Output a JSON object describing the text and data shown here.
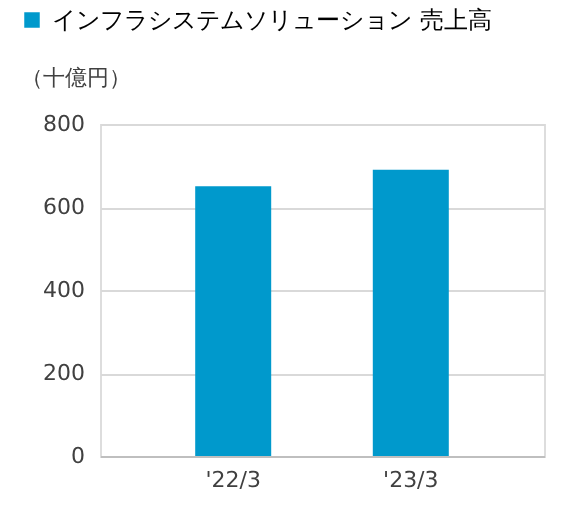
{
  "chart_data": {
    "type": "bar",
    "categories": [
      "'22/3",
      "'23/3"
    ],
    "series": [
      {
        "name": "インフラシステムソリューション 売上高",
        "color": "#0099cc",
        "values": [
          650,
          690
        ]
      }
    ],
    "ylabel": "（十億円）",
    "ylim": [
      0,
      800
    ],
    "yticks": [
      0,
      200,
      400,
      600,
      800
    ],
    "grid": "y",
    "legend": "top left"
  }
}
